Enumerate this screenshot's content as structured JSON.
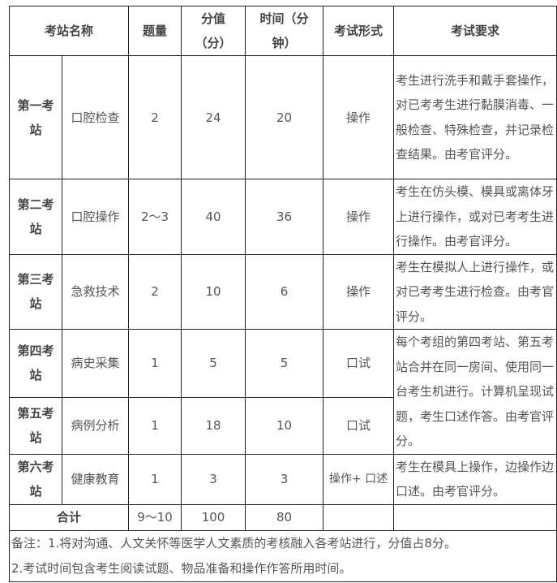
{
  "header": {
    "station_name": "考站名称",
    "count": "题量",
    "score": "分值（分）",
    "time": "时间（分钟）",
    "form": "考试形式",
    "requirement": "考试要求"
  },
  "rows": [
    {
      "station": "第一考站",
      "name": "口腔检查",
      "count": "2",
      "score": "24",
      "time": "20",
      "form": "操作",
      "requirement": "考生进行洗手和戴手套操作，对已考考生进行黏膜消毒、一般检查、特殊检查，并记录检查结果。由考官评分。"
    },
    {
      "station": "第二考站",
      "name": "口腔操作",
      "count": "2～3",
      "score": "40",
      "time": "36",
      "form": "操作",
      "requirement": "考生在仿头模、模具或离体牙上进行操作，或对已考考生进行操作。由考官评分。"
    },
    {
      "station": "第三考站",
      "name": "急救技术",
      "count": "2",
      "score": "10",
      "time": "6",
      "form": "操作",
      "requirement": "考生在模拟人上进行操作，或对已考考生进行检查。由考官评分。"
    },
    {
      "station": "第四考站",
      "name": "病史采集",
      "count": "1",
      "score": "5",
      "time": "5",
      "form": "口试",
      "requirement": "每个考组的第四考站、第五考站合并在同一房间、使用同一台考生机进行。计算机呈现试题，考生口述作答。由考官评分。"
    },
    {
      "station": "第五考站",
      "name": "病例分析",
      "count": "1",
      "score": "18",
      "time": "10",
      "form": "口试"
    },
    {
      "station": "第六考站",
      "name": "健康教育",
      "count": "1",
      "score": "3",
      "time": "3",
      "form": "操作+ 口述",
      "requirement": "考生在模具上操作，边操作边口述。由考官评分。"
    }
  ],
  "total": {
    "label": "合计",
    "count": "9～10",
    "score": "100",
    "time": "80"
  },
  "notes": [
    "备注：1.将对沟通、人文关怀等医学人文素质的考核融入各考站进行，分值占8分。",
    "2.考试时间包含考生阅读试题、物品准备和操作作答所用时间。"
  ]
}
